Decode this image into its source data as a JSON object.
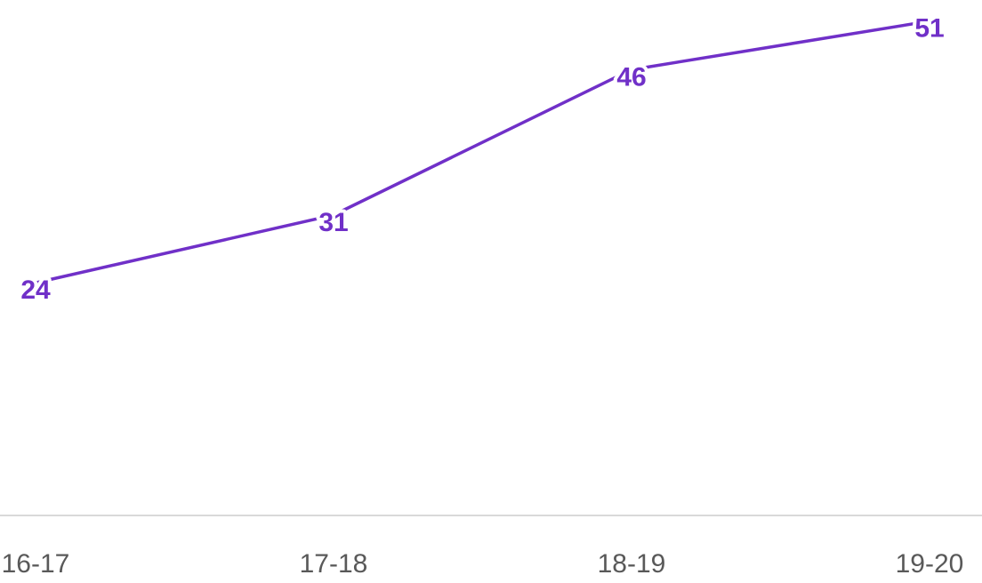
{
  "chart_data": {
    "type": "line",
    "categories": [
      "16-17",
      "17-18",
      "18-19",
      "19-20"
    ],
    "series": [
      {
        "color": "#7030c8",
        "values": [
          24,
          31,
          46,
          51
        ]
      }
    ],
    "ylim": [
      0,
      53
    ]
  }
}
